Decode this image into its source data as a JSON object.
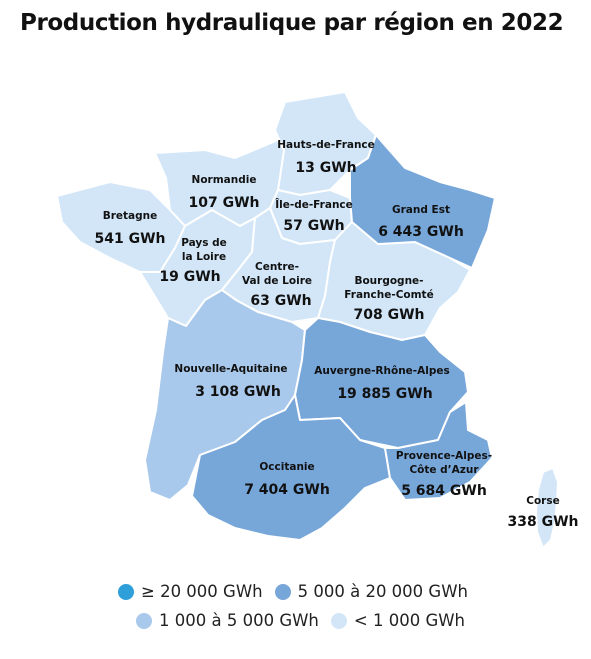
{
  "title": "Production hydraulique par région en 2022",
  "regions": {
    "hauts_de_france": {
      "name": "Hauts-de-France",
      "value": "13 GWh",
      "class": "lt1000"
    },
    "normandie": {
      "name": "Normandie",
      "value": "107 GWh",
      "class": "lt1000"
    },
    "ile_de_france": {
      "name": "Île-de-France",
      "value": "57 GWh",
      "class": "lt1000"
    },
    "grand_est": {
      "name": "Grand Est",
      "value": "6 443 GWh",
      "class": "5000to20000"
    },
    "bretagne": {
      "name": "Bretagne",
      "value": "541 GWh",
      "class": "lt1000"
    },
    "pays_de_la_loire": {
      "name_line1": "Pays de",
      "name_line2": "la Loire",
      "value": "19 GWh",
      "class": "lt1000"
    },
    "centre_val_de_loire": {
      "name_line1": "Centre-",
      "name_line2": "Val de Loire",
      "value": "63 GWh",
      "class": "lt1000"
    },
    "bourgogne_franche_comte": {
      "name_line1": "Bourgogne-",
      "name_line2": "Franche-Comté",
      "value": "708 GWh",
      "class": "lt1000"
    },
    "nouvelle_aquitaine": {
      "name": "Nouvelle-Aquitaine",
      "value": "3 108 GWh",
      "class": "1000to5000"
    },
    "auvergne_rhone_alpes": {
      "name": "Auvergne-Rhône-Alpes",
      "value": "19 885 GWh",
      "class": "5000to20000"
    },
    "occitanie": {
      "name": "Occitanie",
      "value": "7 404 GWh",
      "class": "5000to20000"
    },
    "provence_alpes_cote_dazur": {
      "name_line1": "Provence-Alpes-",
      "name_line2": "Côte d’Azur",
      "value": "5 684 GWh",
      "class": "5000to20000"
    },
    "corse": {
      "name": "Corse",
      "value": "338 GWh",
      "class": "lt1000"
    }
  },
  "legend": {
    "ge20000": {
      "label": "≥ 20 000 GWh",
      "color": "#2e9fd9"
    },
    "r5000_20000": {
      "label": "5 000 à 20 000 GWh",
      "color": "#77a6d9"
    },
    "r1000_5000": {
      "label": "1 000 à 5 000 GWh",
      "color": "#a9c9ec"
    },
    "lt1000": {
      "label": "< 1 000 GWh",
      "color": "#d2e6f8"
    }
  },
  "colors": {
    "region_border": "#ffffff",
    "text": "#111111"
  }
}
